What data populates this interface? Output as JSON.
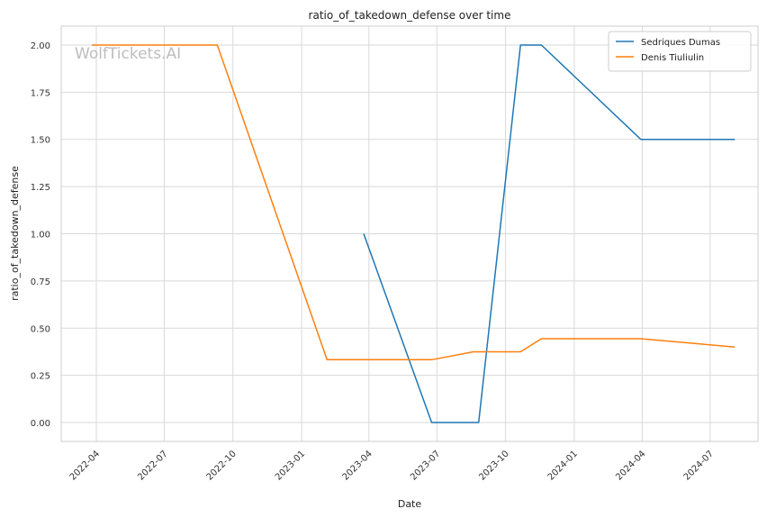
{
  "chart_data": {
    "type": "line",
    "title": "ratio_of_takedown_defense over time",
    "xlabel": "Date",
    "ylabel": "ratio_of_takedown_defense",
    "watermark": "WolfTickets.AI",
    "xlim": [
      "2022-02-13",
      "2024-09-03"
    ],
    "ylim": [
      -0.1,
      2.1
    ],
    "x_ticks": [
      "2022-04-01",
      "2022-07-01",
      "2022-10-01",
      "2023-01-01",
      "2023-04-01",
      "2023-07-01",
      "2023-10-01",
      "2024-01-01",
      "2024-04-01",
      "2024-07-01"
    ],
    "x_tick_labels": [
      "2022-04",
      "2022-07",
      "2022-10",
      "2023-01",
      "2023-04",
      "2023-07",
      "2023-10",
      "2024-01",
      "2024-04",
      "2024-07"
    ],
    "y_ticks": [
      0.0,
      0.25,
      0.5,
      0.75,
      1.0,
      1.25,
      1.5,
      1.75,
      2.0
    ],
    "y_tick_labels": [
      "0.00",
      "0.25",
      "0.50",
      "0.75",
      "1.00",
      "1.25",
      "1.50",
      "1.75",
      "2.00"
    ],
    "grid": true,
    "legend_position": "top-right",
    "series": [
      {
        "name": "Sedriques Dumas",
        "color": "#1f77b4",
        "points": [
          {
            "x": "2023-03-25",
            "y": 1.0
          },
          {
            "x": "2023-06-24",
            "y": 0.0
          },
          {
            "x": "2023-08-26",
            "y": 0.0
          },
          {
            "x": "2023-10-21",
            "y": 2.0
          },
          {
            "x": "2023-11-18",
            "y": 2.0
          },
          {
            "x": "2024-03-30",
            "y": 1.5
          },
          {
            "x": "2024-08-03",
            "y": 1.5
          }
        ]
      },
      {
        "name": "Denis Tiuliulin",
        "color": "#ff7f0e",
        "points": [
          {
            "x": "2022-03-26",
            "y": 2.0
          },
          {
            "x": "2022-09-10",
            "y": 2.0
          },
          {
            "x": "2023-02-04",
            "y": 0.333
          },
          {
            "x": "2023-06-24",
            "y": 0.333
          },
          {
            "x": "2023-08-19",
            "y": 0.375
          },
          {
            "x": "2023-10-21",
            "y": 0.375
          },
          {
            "x": "2023-11-18",
            "y": 0.444
          },
          {
            "x": "2024-03-30",
            "y": 0.444
          },
          {
            "x": "2024-08-03",
            "y": 0.4
          }
        ]
      }
    ]
  }
}
